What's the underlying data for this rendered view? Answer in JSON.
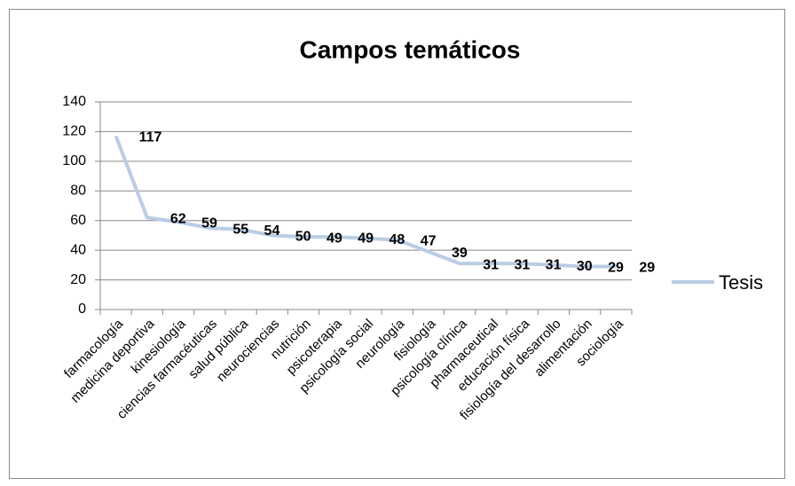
{
  "chart_data": {
    "type": "line",
    "title": "Campos temáticos",
    "categories": [
      "farmacología",
      "medicina deportiva",
      "kinesiología",
      "ciencias farmacéuticas",
      "salud pública",
      "neurociencias",
      "nutrición",
      "psicoterapia",
      "psicología social",
      "neurología",
      "fisiología",
      "psicología clínica",
      "pharmaceutical",
      "educación física",
      "fisiología del desarrollo",
      "alimentación",
      "sociología"
    ],
    "series": [
      {
        "name": "Tesis",
        "color": "#b9cde5",
        "values": [
          117,
          62,
          59,
          55,
          54,
          50,
          49,
          49,
          48,
          47,
          39,
          31,
          31,
          31,
          30,
          29,
          29
        ]
      }
    ],
    "ylim": [
      0,
      140
    ],
    "yticks": [
      0,
      20,
      40,
      60,
      80,
      100,
      120,
      140
    ],
    "grid": true,
    "legend": "right"
  }
}
